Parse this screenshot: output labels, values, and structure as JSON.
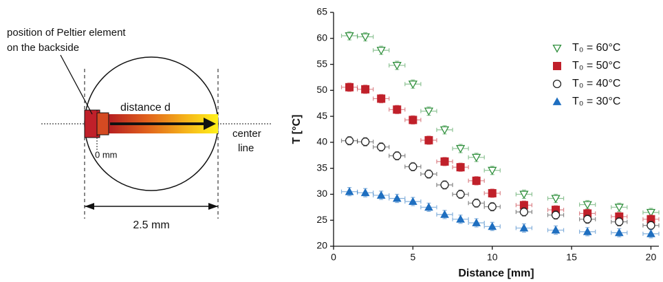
{
  "diagram": {
    "peltier_label_1": "position of Peltier element",
    "peltier_label_2": "on the backside",
    "distance_label": "distance d",
    "zero_label": "0 mm",
    "center_label_1": "center",
    "center_label_2": "line",
    "width_label": "2.5 mm"
  },
  "chart_data": {
    "type": "scatter",
    "xlabel": "Distance [mm]",
    "ylabel": "T [°C]",
    "x": [
      1,
      2,
      3,
      4,
      5,
      6,
      7,
      8,
      9,
      10,
      12,
      14,
      16,
      18,
      20
    ],
    "xlim": [
      0,
      20.5
    ],
    "ylim": [
      20,
      65
    ],
    "xticks": [
      0,
      5,
      10,
      15,
      20
    ],
    "yticks": [
      20,
      25,
      30,
      35,
      40,
      45,
      50,
      55,
      60,
      65
    ],
    "legend": "upper right",
    "series": [
      {
        "name": "T₀ = 60°C",
        "color": "#2f8f3c",
        "marker": "triangle-down-open",
        "xerr": 0.5,
        "yerr": 0.8,
        "values": [
          60.5,
          60.3,
          57.7,
          54.8,
          51.2,
          46.0,
          42.4,
          38.8,
          37.1,
          34.6,
          30.0,
          29.2,
          28.0,
          27.5,
          26.5
        ]
      },
      {
        "name": "T₀ = 50°C",
        "color": "#c0202a",
        "marker": "square",
        "xerr": 0.5,
        "yerr": 0.8,
        "values": [
          50.6,
          50.2,
          48.4,
          46.3,
          44.3,
          40.4,
          36.3,
          35.2,
          32.6,
          30.2,
          27.9,
          27.0,
          26.3,
          25.7,
          25.2
        ]
      },
      {
        "name": "T₀ = 40°C",
        "color": "#222222",
        "marker": "circle-open",
        "xerr": 0.5,
        "yerr": 0.8,
        "values": [
          40.3,
          40.1,
          39.1,
          37.4,
          35.3,
          33.9,
          31.8,
          30.0,
          28.3,
          27.6,
          26.6,
          26.0,
          25.2,
          24.7,
          24.0
        ]
      },
      {
        "name": "T₀ = 30°C",
        "color": "#1f6fc0",
        "marker": "triangle-up",
        "xerr": 0.5,
        "yerr": 0.8,
        "values": [
          30.5,
          30.3,
          29.8,
          29.2,
          28.6,
          27.5,
          26.1,
          25.2,
          24.5,
          23.8,
          23.5,
          23.1,
          22.8,
          22.6,
          22.4
        ]
      }
    ]
  }
}
